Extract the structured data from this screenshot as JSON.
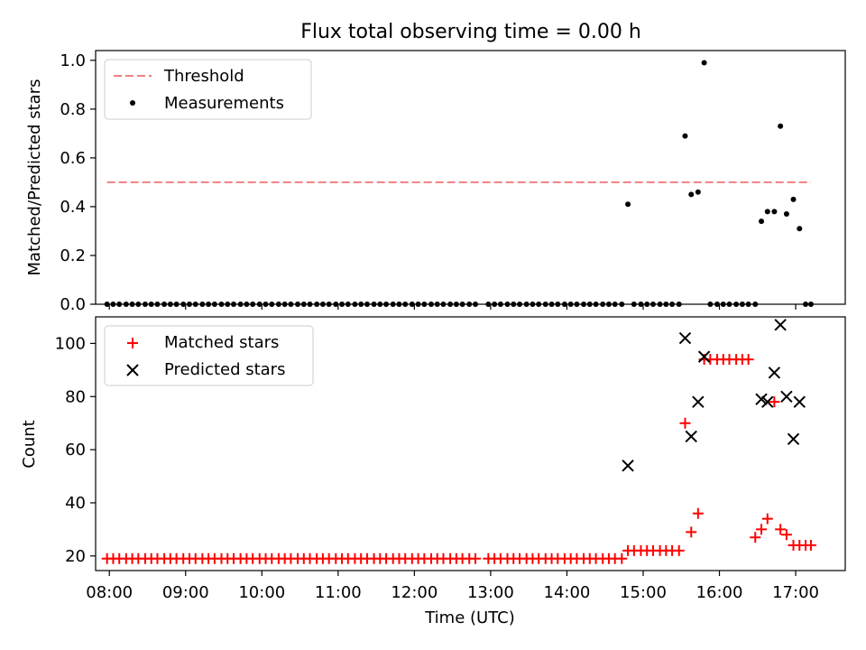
{
  "figure_title": "Flux total observing time = 0.00 h",
  "colors": {
    "threshold": "#f08080",
    "measurements": "#000000",
    "matched": "#ff0000",
    "predicted": "#000000",
    "axes": "#000000"
  },
  "chart_data": [
    {
      "type": "scatter",
      "title": "Flux total observing time = 0.00 h",
      "xlabel": "",
      "ylabel": "Matched/Predicted stars",
      "xlim": [
        7.82,
        17.65
      ],
      "ylim": [
        0.0,
        1.04
      ],
      "yticks": [
        0.0,
        0.2,
        0.4,
        0.6,
        0.8,
        1.0
      ],
      "ytick_labels": [
        "0.0",
        "0.2",
        "0.4",
        "0.6",
        "0.8",
        "1.0"
      ],
      "xticks": [
        8,
        9,
        10,
        11,
        12,
        13,
        14,
        15,
        16,
        17
      ],
      "show_xtick_labels": false,
      "grid": false,
      "legend_position": "top-left",
      "threshold": {
        "name": "Threshold",
        "value": 0.5,
        "x_range": [
          7.97,
          17.2
        ],
        "style": "dashed"
      },
      "series": [
        {
          "name": "Measurements",
          "marker": "dot",
          "x": [
            7.97,
            8.05,
            8.13,
            8.22,
            8.3,
            8.38,
            8.47,
            8.55,
            8.63,
            8.72,
            8.8,
            8.88,
            8.97,
            9.05,
            9.13,
            9.22,
            9.3,
            9.38,
            9.47,
            9.55,
            9.63,
            9.72,
            9.8,
            9.88,
            9.97,
            10.05,
            10.13,
            10.22,
            10.3,
            10.38,
            10.47,
            10.55,
            10.63,
            10.72,
            10.8,
            10.88,
            10.97,
            11.05,
            11.13,
            11.22,
            11.3,
            11.38,
            11.47,
            11.55,
            11.63,
            11.72,
            11.8,
            11.88,
            11.97,
            12.05,
            12.13,
            12.22,
            12.3,
            12.38,
            12.47,
            12.55,
            12.63,
            12.72,
            12.8,
            12.97,
            13.05,
            13.13,
            13.22,
            13.3,
            13.38,
            13.47,
            13.55,
            13.63,
            13.72,
            13.8,
            13.88,
            13.97,
            14.05,
            14.13,
            14.22,
            14.3,
            14.38,
            14.47,
            14.55,
            14.63,
            14.72,
            14.8,
            14.88,
            14.97,
            15.05,
            15.13,
            15.22,
            15.3,
            15.38,
            15.47,
            15.55,
            15.63,
            15.72,
            15.8,
            15.88,
            15.97,
            16.05,
            16.13,
            16.22,
            16.3,
            16.38,
            16.47,
            16.55,
            16.63,
            16.72,
            16.8,
            16.88,
            16.97,
            17.05,
            17.13,
            17.2
          ],
          "y": [
            0,
            0,
            0,
            0,
            0,
            0,
            0,
            0,
            0,
            0,
            0,
            0,
            0,
            0,
            0,
            0,
            0,
            0,
            0,
            0,
            0,
            0,
            0,
            0,
            0,
            0,
            0,
            0,
            0,
            0,
            0,
            0,
            0,
            0,
            0,
            0,
            0,
            0,
            0,
            0,
            0,
            0,
            0,
            0,
            0,
            0,
            0,
            0,
            0,
            0,
            0,
            0,
            0,
            0,
            0,
            0,
            0,
            0,
            0,
            0,
            0,
            0,
            0,
            0,
            0,
            0,
            0,
            0,
            0,
            0,
            0,
            0,
            0,
            0,
            0,
            0,
            0,
            0,
            0,
            0,
            0,
            0.41,
            0,
            0,
            0,
            0,
            0,
            0,
            0,
            0,
            0.69,
            0.45,
            0.46,
            0.99,
            0,
            0,
            0,
            0,
            0,
            0,
            0,
            0,
            0.34,
            0.38,
            0.38,
            0.73,
            0.37,
            0.43,
            0.31,
            0,
            0
          ]
        }
      ]
    },
    {
      "type": "scatter",
      "title": "",
      "xlabel": "Time (UTC)",
      "ylabel": "Count",
      "xlim": [
        7.82,
        17.65
      ],
      "ylim": [
        14.5,
        110
      ],
      "yticks": [
        20,
        40,
        60,
        80,
        100
      ],
      "ytick_labels": [
        "20",
        "40",
        "60",
        "80",
        "100"
      ],
      "xticks": [
        8,
        9,
        10,
        11,
        12,
        13,
        14,
        15,
        16,
        17
      ],
      "xtick_labels": [
        "08:00",
        "09:00",
        "10:00",
        "11:00",
        "12:00",
        "13:00",
        "14:00",
        "15:00",
        "16:00",
        "17:00"
      ],
      "grid": false,
      "legend_position": "top-left",
      "series": [
        {
          "name": "Matched stars",
          "marker": "plus",
          "x": [
            7.97,
            8.05,
            8.13,
            8.22,
            8.3,
            8.38,
            8.47,
            8.55,
            8.63,
            8.72,
            8.8,
            8.88,
            8.97,
            9.05,
            9.13,
            9.22,
            9.3,
            9.38,
            9.47,
            9.55,
            9.63,
            9.72,
            9.8,
            9.88,
            9.97,
            10.05,
            10.13,
            10.22,
            10.3,
            10.38,
            10.47,
            10.55,
            10.63,
            10.72,
            10.8,
            10.88,
            10.97,
            11.05,
            11.13,
            11.22,
            11.3,
            11.38,
            11.47,
            11.55,
            11.63,
            11.72,
            11.8,
            11.88,
            11.97,
            12.05,
            12.13,
            12.22,
            12.3,
            12.38,
            12.47,
            12.55,
            12.63,
            12.72,
            12.8,
            12.97,
            13.05,
            13.13,
            13.22,
            13.3,
            13.38,
            13.47,
            13.55,
            13.63,
            13.72,
            13.8,
            13.88,
            13.97,
            14.05,
            14.13,
            14.22,
            14.3,
            14.38,
            14.47,
            14.55,
            14.63,
            14.72,
            14.8,
            14.88,
            14.97,
            15.05,
            15.13,
            15.22,
            15.3,
            15.38,
            15.47,
            15.55,
            15.63,
            15.72,
            15.8,
            15.88,
            15.97,
            16.05,
            16.13,
            16.22,
            16.3,
            16.38,
            16.47,
            16.55,
            16.63,
            16.72,
            16.8,
            16.88,
            16.97,
            17.05,
            17.13,
            17.2
          ],
          "y": [
            19,
            19,
            19,
            19,
            19,
            19,
            19,
            19,
            19,
            19,
            19,
            19,
            19,
            19,
            19,
            19,
            19,
            19,
            19,
            19,
            19,
            19,
            19,
            19,
            19,
            19,
            19,
            19,
            19,
            19,
            19,
            19,
            19,
            19,
            19,
            19,
            19,
            19,
            19,
            19,
            19,
            19,
            19,
            19,
            19,
            19,
            19,
            19,
            19,
            19,
            19,
            19,
            19,
            19,
            19,
            19,
            19,
            19,
            19,
            19,
            19,
            19,
            19,
            19,
            19,
            19,
            19,
            19,
            19,
            19,
            19,
            19,
            19,
            19,
            19,
            19,
            19,
            19,
            19,
            19,
            19,
            22,
            22,
            22,
            22,
            22,
            22,
            22,
            22,
            22,
            70,
            29,
            36,
            94,
            94,
            94,
            94,
            94,
            94,
            94,
            94,
            27,
            30,
            34,
            78,
            30,
            28,
            24,
            24,
            24,
            24
          ]
        },
        {
          "name": "Predicted stars",
          "marker": "cross",
          "x": [
            14.8,
            15.55,
            15.63,
            15.72,
            15.8,
            16.55,
            16.63,
            16.72,
            16.8,
            16.88,
            16.97,
            17.05
          ],
          "y": [
            54,
            102,
            65,
            78,
            95,
            79,
            78,
            89,
            107,
            80,
            64,
            78
          ]
        }
      ]
    }
  ]
}
